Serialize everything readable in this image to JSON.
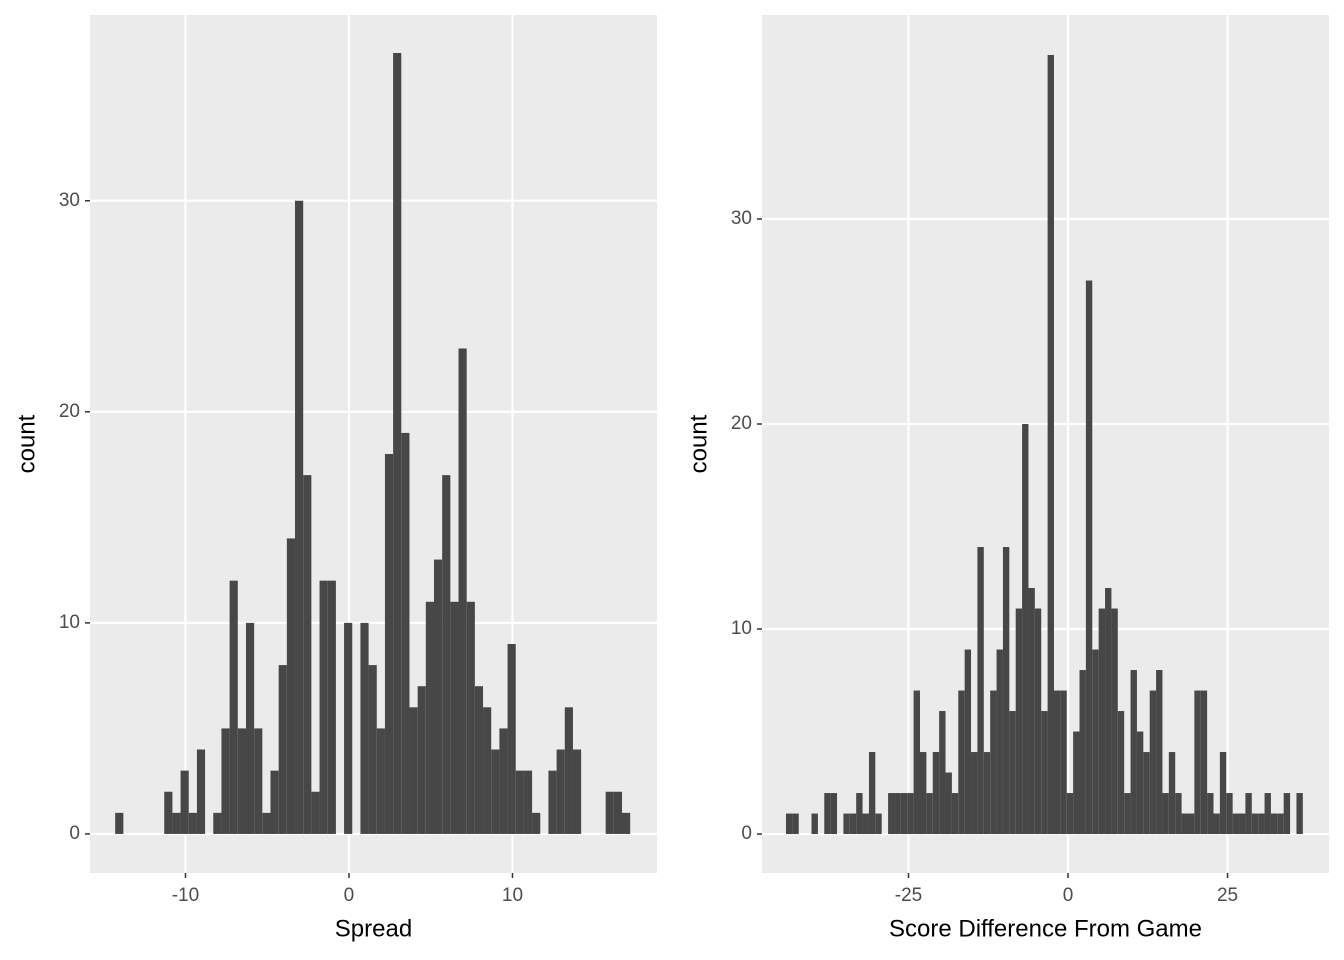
{
  "chart_data": [
    {
      "type": "histogram",
      "xlabel": "Spread",
      "ylabel": "count",
      "color": "#474747",
      "grid": true,
      "bins": [
        -14.3,
        -13.8,
        -13.3,
        -12.8,
        -12.3,
        -11.8,
        -11.3,
        -10.8,
        -10.3,
        -9.8,
        -9.3,
        -8.8,
        -8.3,
        -7.8,
        -7.3,
        -6.8,
        -6.3,
        -5.8,
        -5.3,
        -4.8,
        -4.3,
        -3.8,
        -3.3,
        -2.8,
        -2.3,
        -1.8,
        -1.3,
        -0.8,
        -0.3,
        0.2,
        0.7,
        1.2,
        1.7,
        2.2,
        2.7,
        3.2,
        3.7,
        4.2,
        4.7,
        5.2,
        5.7,
        6.2,
        6.7,
        7.2,
        7.7,
        8.2,
        8.7,
        9.2,
        9.7,
        10.2,
        10.7,
        11.2,
        11.7,
        12.2,
        12.7,
        13.2,
        13.7,
        14.2,
        14.7,
        15.2,
        15.7,
        16.2,
        16.7,
        17.2
      ],
      "values": [
        1,
        0,
        0,
        0,
        0,
        0,
        2,
        1,
        3,
        1,
        4,
        0,
        1,
        5,
        12,
        5,
        10,
        5,
        1,
        3,
        8,
        14,
        30,
        17,
        2,
        12,
        12,
        0,
        10,
        0,
        10,
        8,
        5,
        18,
        37,
        19,
        6,
        7,
        11,
        13,
        17,
        11,
        23,
        11,
        7,
        6,
        4,
        5,
        9,
        3,
        3,
        1,
        0,
        3,
        4,
        6,
        4,
        0,
        0,
        0,
        2,
        2,
        1
      ],
      "xlim": [
        -15.84,
        18.84
      ],
      "xticks": [
        -10,
        0,
        10
      ],
      "ylim": [
        -1.85,
        38.8
      ],
      "yticks": [
        0,
        10,
        20,
        30
      ]
    },
    {
      "type": "histogram",
      "xlabel": "Score Difference From Game",
      "ylabel": "count",
      "color": "#474747",
      "grid": true,
      "bins": [
        -44.2,
        -43.2,
        -42.2,
        -41.2,
        -40.2,
        -39.2,
        -38.2,
        -37.2,
        -36.2,
        -35.2,
        -34.2,
        -33.2,
        -32.2,
        -31.2,
        -30.2,
        -29.2,
        -28.2,
        -27.2,
        -26.2,
        -25.2,
        -24.2,
        -23.2,
        -22.2,
        -21.2,
        -20.2,
        -19.2,
        -18.2,
        -17.2,
        -16.2,
        -15.2,
        -14.2,
        -13.2,
        -12.2,
        -11.2,
        -10.2,
        -9.2,
        -8.2,
        -7.2,
        -6.2,
        -5.2,
        -4.2,
        -3.2,
        -2.2,
        -1.2,
        -0.2,
        0.8,
        1.8,
        2.8,
        3.8,
        4.8,
        5.8,
        6.8,
        7.8,
        8.8,
        9.8,
        10.8,
        11.8,
        12.8,
        13.8,
        14.8,
        15.8,
        16.8,
        17.8,
        18.8,
        19.8,
        20.8,
        21.8,
        22.8,
        23.8,
        24.8,
        25.8,
        26.8,
        27.8,
        28.8,
        29.8,
        30.8,
        31.8,
        32.8,
        33.8,
        34.8,
        35.8,
        36.8
      ],
      "values": [
        1,
        1,
        0,
        0,
        1,
        0,
        2,
        2,
        0,
        1,
        1,
        2,
        1,
        4,
        1,
        0,
        2,
        2,
        2,
        2,
        7,
        4,
        2,
        4,
        6,
        3,
        2,
        7,
        9,
        4,
        14,
        4,
        7,
        9,
        14,
        6,
        11,
        20,
        12,
        11,
        6,
        38,
        7,
        7,
        2,
        5,
        8,
        27,
        9,
        11,
        12,
        11,
        6,
        2,
        8,
        5,
        4,
        7,
        8,
        2,
        4,
        2,
        1,
        1,
        7,
        7,
        2,
        1,
        4,
        2,
        1,
        1,
        2,
        1,
        1,
        2,
        1,
        1,
        2,
        0,
        2
      ],
      "xlim": [
        -47.96,
        40.9
      ],
      "xticks": [
        -25,
        0,
        25
      ],
      "ylim": [
        -1.9,
        39.95
      ],
      "yticks": [
        0,
        10,
        20,
        30
      ]
    }
  ]
}
